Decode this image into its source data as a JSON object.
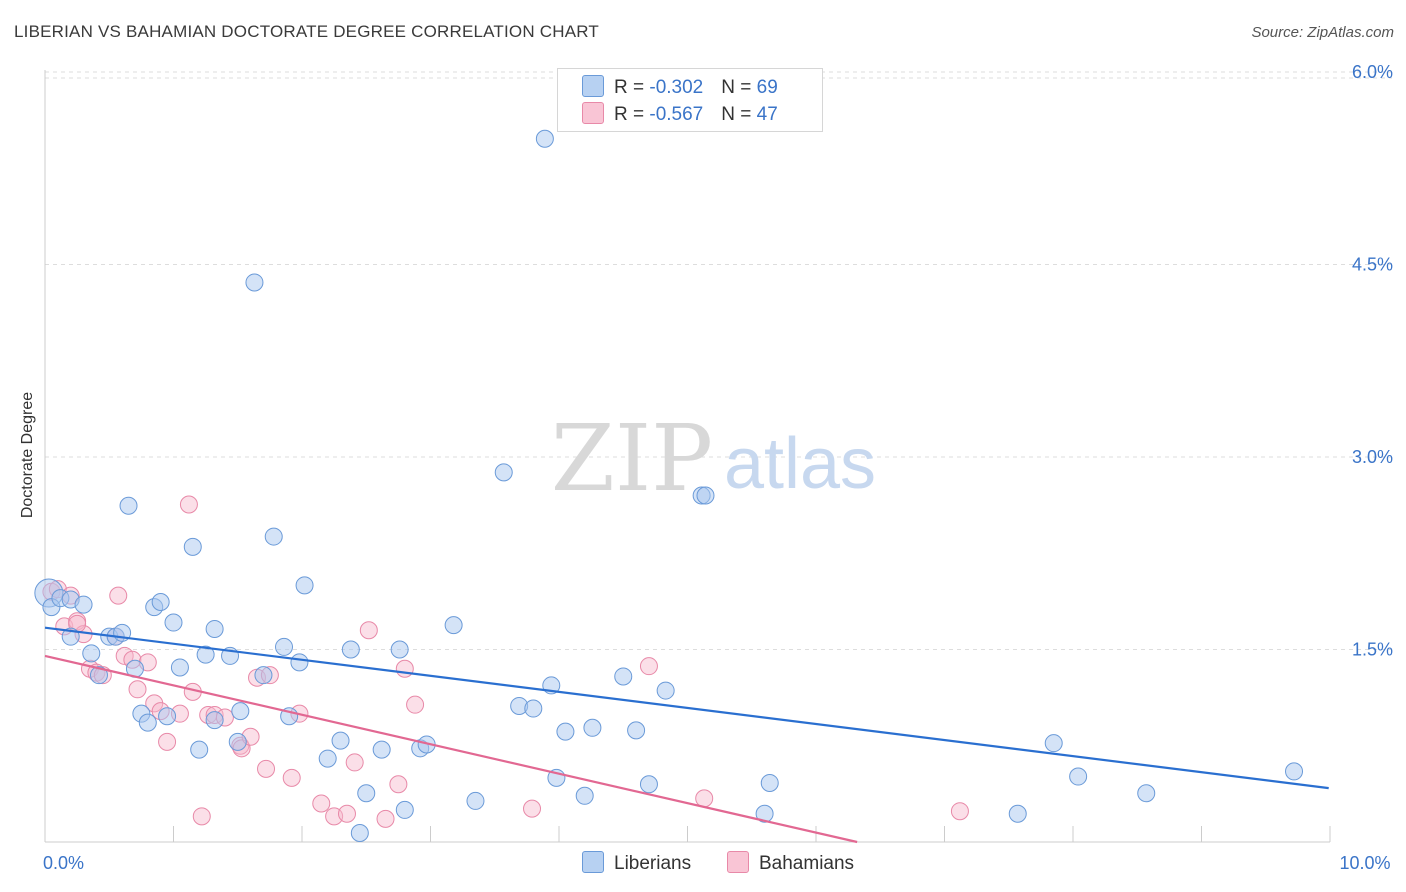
{
  "title": "LIBERIAN VS BAHAMIAN DOCTORATE DEGREE CORRELATION CHART",
  "source": "Source: ZipAtlas.com",
  "watermark": {
    "zip": "ZIP",
    "atlas": "atlas"
  },
  "legend": {
    "liberians": {
      "r_label": "R = ",
      "r_value": "-0.302",
      "n_label": "N = ",
      "n_value": "69"
    },
    "bahamians": {
      "r_label": "R = ",
      "r_value": "-0.567",
      "n_label": "N = ",
      "n_value": "47"
    }
  },
  "bottom_legend": {
    "liberians": "Liberians",
    "bahamians": "Bahamians"
  },
  "colors": {
    "liberian_fill": "#aac8f0",
    "liberian_stroke": "#6a9ad8",
    "liberian_line": "#2a6fd0",
    "bahamian_fill": "#f7b8cc",
    "bahamian_stroke": "#e889a8",
    "bahamian_line": "#e26892",
    "axis_text": "#3a74c8",
    "grid": "#dddddd"
  },
  "chart_data": {
    "type": "scatter",
    "title": "LIBERIAN VS BAHAMIAN DOCTORATE DEGREE CORRELATION CHART",
    "xlabel": "",
    "ylabel": "Doctorate Degree",
    "xlim": [
      0,
      10
    ],
    "ylim": [
      0,
      6.2
    ],
    "x_tick_labels": [
      {
        "value": 0,
        "label": "0.0%"
      },
      {
        "value": 10,
        "label": "10.0%"
      }
    ],
    "y_tick_labels": [
      {
        "value": 1.5,
        "label": "1.5%"
      },
      {
        "value": 3.0,
        "label": "3.0%"
      },
      {
        "value": 4.5,
        "label": "4.5%"
      },
      {
        "value": 6.0,
        "label": "6.0%"
      }
    ],
    "series": [
      {
        "name": "Liberians",
        "r": -0.302,
        "n": 69,
        "trendline": {
          "x": [
            0,
            9.99
          ],
          "y": [
            1.67,
            0.42
          ]
        },
        "points": [
          [
            0.03,
            1.94
          ],
          [
            0.05,
            1.83
          ],
          [
            0.12,
            1.9
          ],
          [
            0.2,
            1.89
          ],
          [
            0.3,
            1.85
          ],
          [
            0.2,
            1.6
          ],
          [
            0.36,
            1.47
          ],
          [
            0.42,
            1.3
          ],
          [
            0.5,
            1.6
          ],
          [
            0.55,
            1.6
          ],
          [
            0.6,
            1.63
          ],
          [
            0.65,
            2.62
          ],
          [
            0.7,
            1.35
          ],
          [
            0.75,
            1.0
          ],
          [
            0.8,
            0.93
          ],
          [
            0.85,
            1.83
          ],
          [
            0.9,
            1.87
          ],
          [
            0.95,
            0.98
          ],
          [
            1.0,
            1.71
          ],
          [
            1.05,
            1.36
          ],
          [
            1.15,
            2.3
          ],
          [
            1.2,
            0.72
          ],
          [
            1.25,
            1.46
          ],
          [
            1.32,
            1.66
          ],
          [
            1.32,
            0.95
          ],
          [
            1.44,
            1.45
          ],
          [
            1.5,
            0.78
          ],
          [
            1.52,
            1.02
          ],
          [
            1.63,
            4.36
          ],
          [
            1.7,
            1.3
          ],
          [
            1.78,
            2.38
          ],
          [
            1.86,
            1.52
          ],
          [
            1.9,
            0.98
          ],
          [
            1.98,
            1.4
          ],
          [
            2.02,
            2.0
          ],
          [
            2.2,
            0.65
          ],
          [
            2.3,
            0.79
          ],
          [
            2.38,
            1.5
          ],
          [
            2.45,
            0.07
          ],
          [
            2.5,
            0.38
          ],
          [
            2.62,
            0.72
          ],
          [
            2.76,
            1.5
          ],
          [
            2.8,
            0.25
          ],
          [
            2.92,
            0.73
          ],
          [
            2.97,
            0.76
          ],
          [
            3.18,
            1.69
          ],
          [
            3.35,
            0.32
          ],
          [
            3.57,
            2.88
          ],
          [
            3.69,
            1.06
          ],
          [
            3.8,
            1.04
          ],
          [
            3.89,
            5.48
          ],
          [
            3.94,
            1.22
          ],
          [
            3.98,
            0.5
          ],
          [
            4.05,
            0.86
          ],
          [
            4.2,
            0.36
          ],
          [
            4.26,
            0.89
          ],
          [
            4.5,
            1.29
          ],
          [
            4.6,
            0.87
          ],
          [
            4.7,
            0.45
          ],
          [
            4.83,
            1.18
          ],
          [
            5.11,
            2.7
          ],
          [
            5.14,
            2.7
          ],
          [
            5.6,
            0.22
          ],
          [
            5.64,
            0.46
          ],
          [
            7.57,
            0.22
          ],
          [
            7.85,
            0.77
          ],
          [
            8.04,
            0.51
          ],
          [
            8.57,
            0.38
          ],
          [
            9.72,
            0.55
          ]
        ]
      },
      {
        "name": "Bahamians",
        "r": -0.567,
        "n": 47,
        "trendline": {
          "x": [
            0,
            6.32
          ],
          "y": [
            1.45,
            0.0
          ]
        },
        "points": [
          [
            0.05,
            1.95
          ],
          [
            0.1,
            1.97
          ],
          [
            0.15,
            1.68
          ],
          [
            0.2,
            1.92
          ],
          [
            0.25,
            1.72
          ],
          [
            0.3,
            1.62
          ],
          [
            0.35,
            1.35
          ],
          [
            0.4,
            1.32
          ],
          [
            0.45,
            1.3
          ],
          [
            0.55,
            1.6
          ],
          [
            0.57,
            1.92
          ],
          [
            0.62,
            1.45
          ],
          [
            0.68,
            1.42
          ],
          [
            0.72,
            1.19
          ],
          [
            0.8,
            1.4
          ],
          [
            0.85,
            1.08
          ],
          [
            0.9,
            1.02
          ],
          [
            0.95,
            0.78
          ],
          [
            1.05,
            1.0
          ],
          [
            1.12,
            2.63
          ],
          [
            1.15,
            1.17
          ],
          [
            1.22,
            0.2
          ],
          [
            1.27,
            0.99
          ],
          [
            1.32,
            0.99
          ],
          [
            1.4,
            0.97
          ],
          [
            1.52,
            0.75
          ],
          [
            1.53,
            0.73
          ],
          [
            1.6,
            0.82
          ],
          [
            1.65,
            1.28
          ],
          [
            1.72,
            0.57
          ],
          [
            1.75,
            1.3
          ],
          [
            1.92,
            0.5
          ],
          [
            1.98,
            1.0
          ],
          [
            2.15,
            0.3
          ],
          [
            2.25,
            0.2
          ],
          [
            2.35,
            0.22
          ],
          [
            2.41,
            0.62
          ],
          [
            2.52,
            1.65
          ],
          [
            2.65,
            0.18
          ],
          [
            2.75,
            0.45
          ],
          [
            2.8,
            1.35
          ],
          [
            2.88,
            1.07
          ],
          [
            3.79,
            0.26
          ],
          [
            4.7,
            1.37
          ],
          [
            5.13,
            0.34
          ],
          [
            7.12,
            0.24
          ],
          [
            0.25,
            1.7
          ]
        ]
      }
    ]
  }
}
